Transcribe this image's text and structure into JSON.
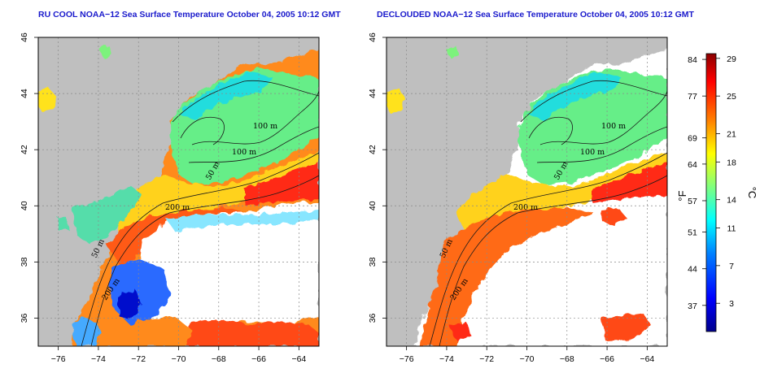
{
  "maps": [
    {
      "title": "RU COOL NOAA−12 Sea Surface Temperature October 04, 2005 10:12 GMT",
      "mode": "raw"
    },
    {
      "title": "DECLOUDED NOAA−12 Sea Surface Temperature October 04, 2005 10:12 GMT",
      "mode": "declouded"
    }
  ],
  "axes": {
    "lon_ticks": [
      "−76",
      "−74",
      "−72",
      "−70",
      "−68",
      "−66",
      "−64"
    ],
    "lon_values": [
      -76,
      -74,
      -72,
      -70,
      -68,
      -66,
      -64
    ],
    "lat_ticks": [
      "36",
      "38",
      "40",
      "42",
      "44",
      "46"
    ],
    "lat_values": [
      36,
      38,
      40,
      42,
      44,
      46
    ],
    "lon_range": [
      -77,
      -63
    ],
    "lat_range": [
      35,
      46
    ]
  },
  "contour_labels": [
    "100 m",
    "100 m",
    "50 m",
    "200 m",
    "50 m",
    "200 m"
  ],
  "colorbar": {
    "f_labels": [
      "84",
      "77",
      "69",
      "64",
      "57",
      "51",
      "44",
      "37"
    ],
    "f_values": [
      84,
      77,
      69,
      64,
      57,
      51,
      44,
      37
    ],
    "c_labels": [
      "29",
      "25",
      "21",
      "18",
      "14",
      "11",
      "7",
      "3"
    ],
    "c_values": [
      29,
      25,
      21,
      18,
      14,
      11,
      7,
      3
    ],
    "f_unit": "°F",
    "c_unit": "°C",
    "c_range": [
      0,
      29.5
    ],
    "colors": [
      "#00008b",
      "#0000ff",
      "#0080ff",
      "#00ffff",
      "#7fff7f",
      "#ffff00",
      "#ff8000",
      "#ff0000",
      "#8b0000"
    ]
  },
  "palette": {
    "land": "#bfbfbf",
    "cloud": "#ffffff",
    "title_color": "#1a1acc"
  }
}
